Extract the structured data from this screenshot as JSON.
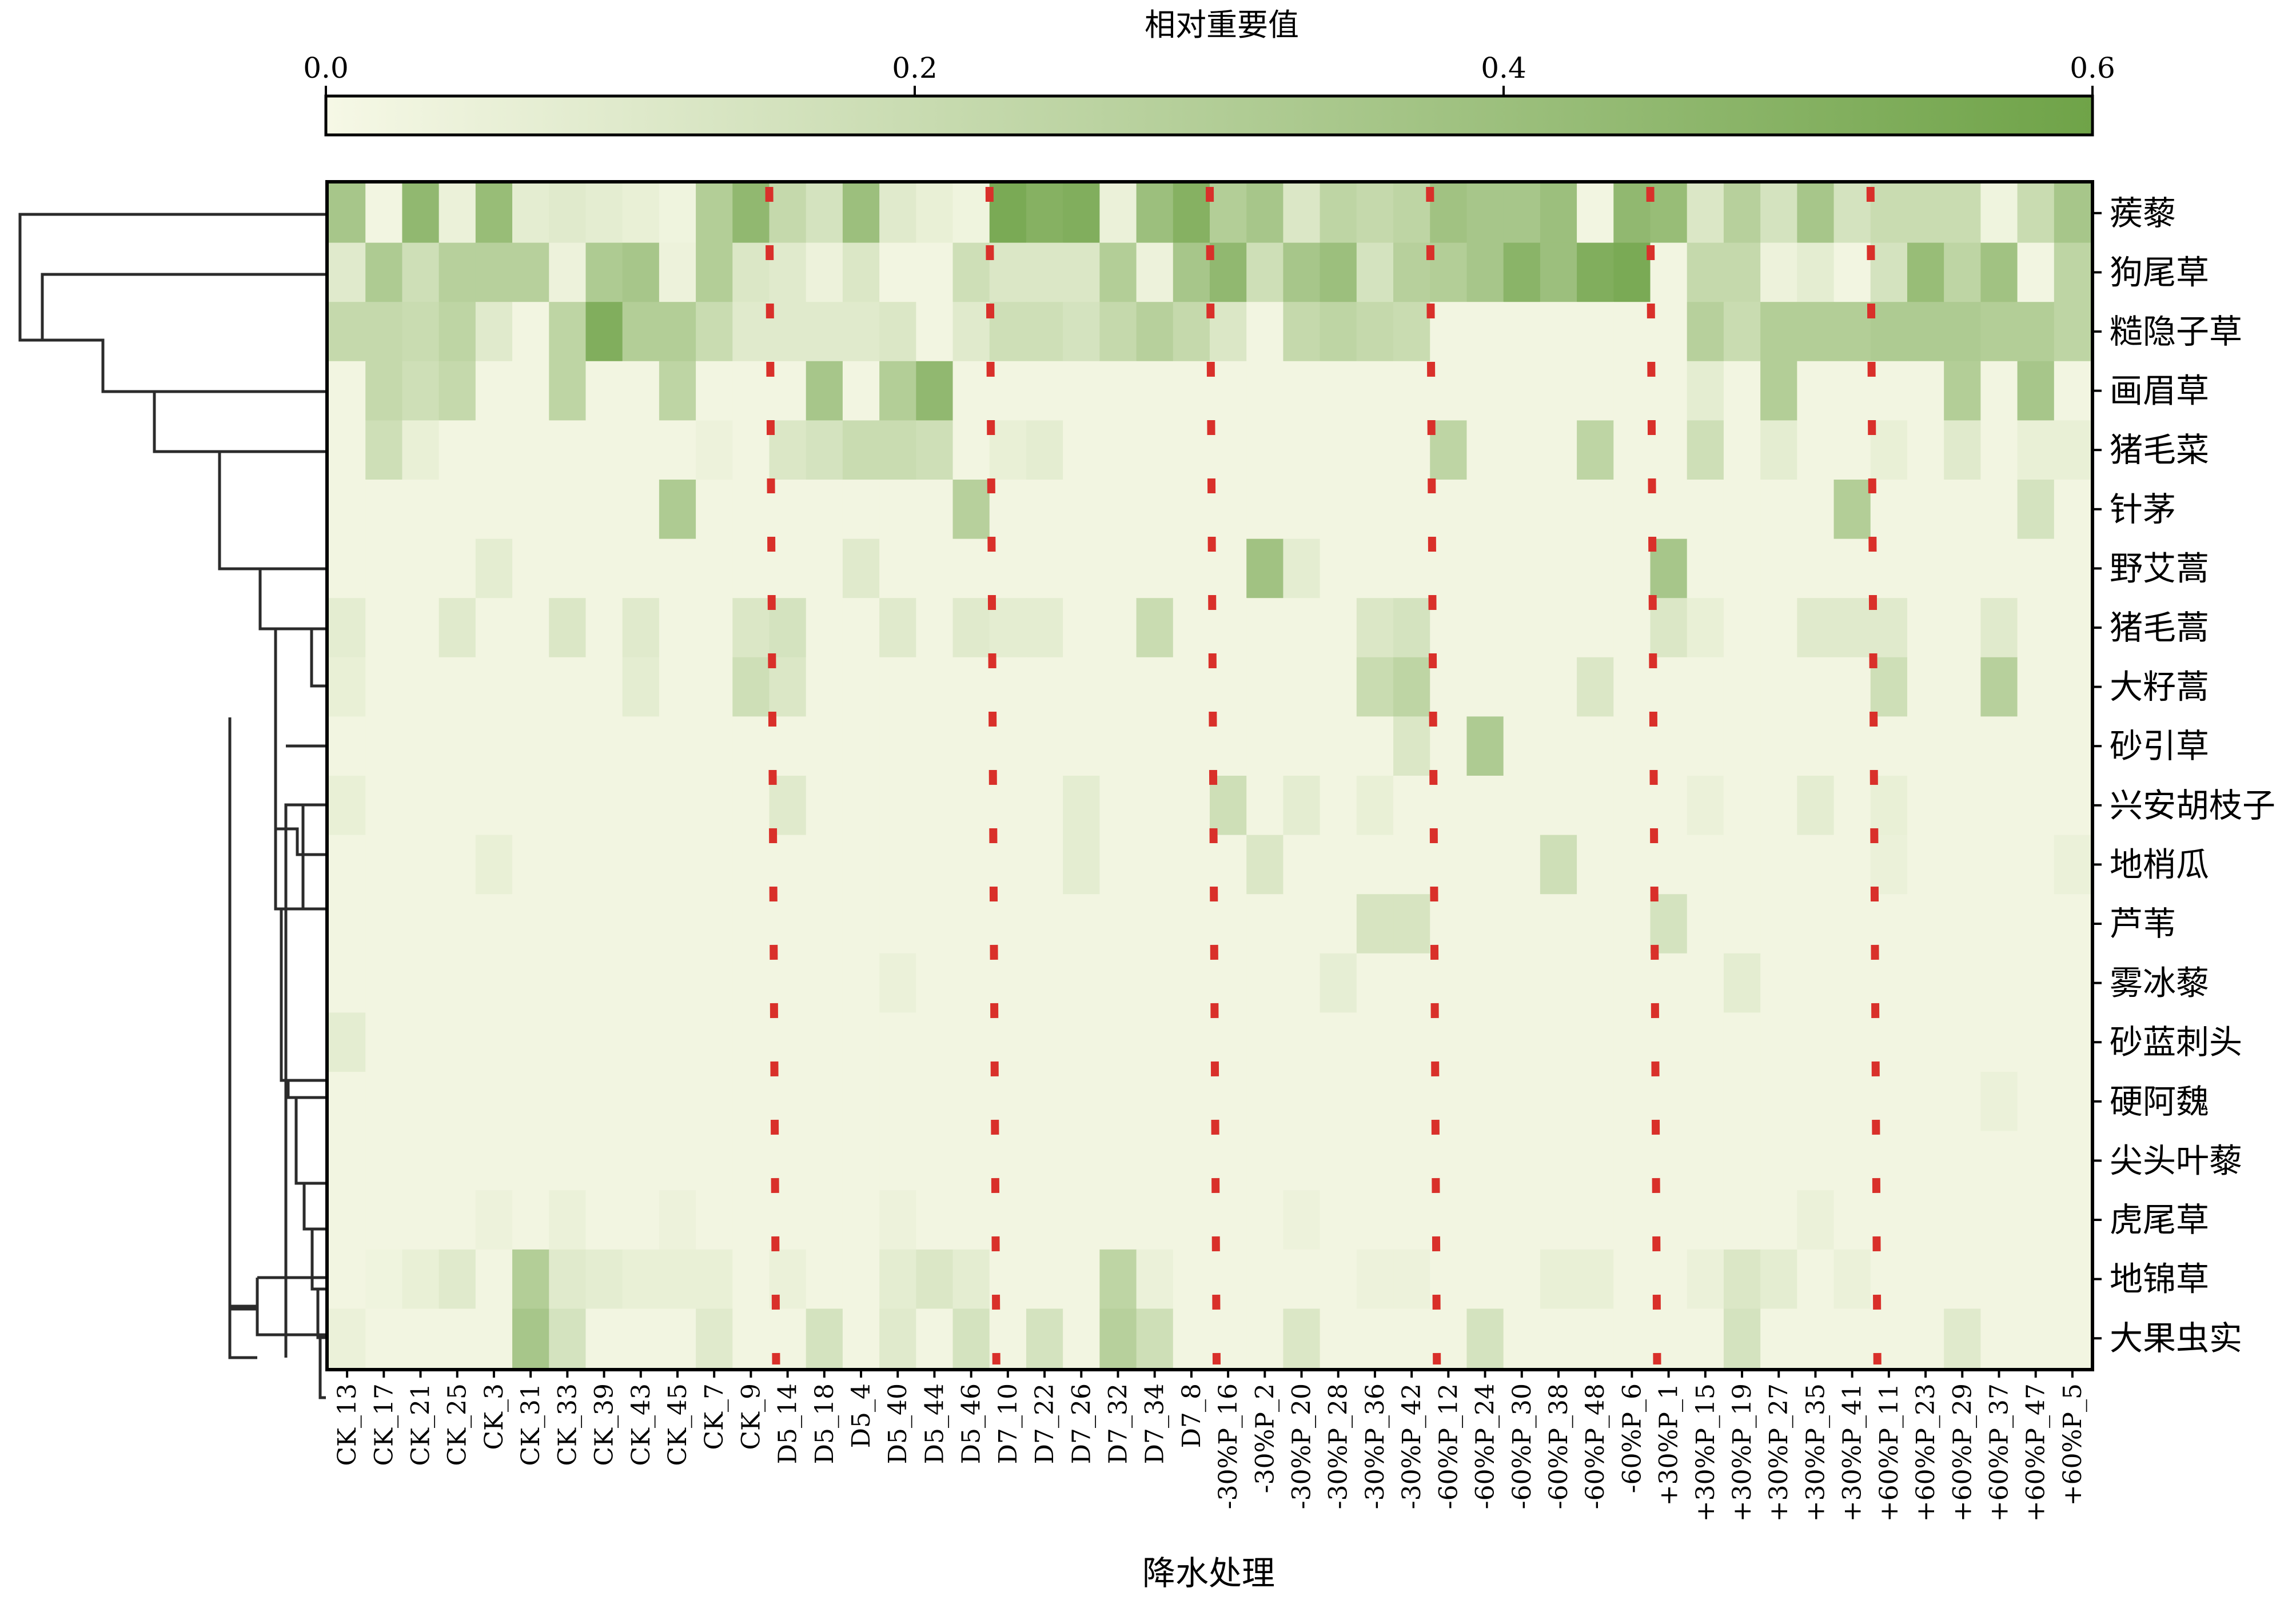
{
  "chart_data": {
    "type": "heatmap",
    "title": "",
    "colorbar": {
      "label": "相对重要值",
      "range": [
        0,
        0.6
      ],
      "ticks": [
        "0.0",
        "0.2",
        "0.4",
        "0.6"
      ],
      "tick_values": [
        0,
        0.2,
        0.4,
        0.6
      ],
      "low_color": "#f6f8e6",
      "high_color": "#6fa348"
    },
    "xlabel": "降水处理",
    "ylabel": "",
    "rows": [
      "蒺藜",
      "狗尾草",
      "糙隐子草",
      "画眉草",
      "猪毛菜",
      "针茅",
      "野艾蒿",
      "猪毛蒿",
      "大籽蒿",
      "砂引草",
      "兴安胡枝子",
      "地梢瓜",
      "芦苇",
      "雾冰藜",
      "砂蓝刺头",
      "硬阿魏",
      "尖头叶藜",
      "虎尾草",
      "地锦草",
      "大果虫实"
    ],
    "columns": [
      "CK_13",
      "CK_17",
      "CK_21",
      "CK_25",
      "CK_3",
      "CK_31",
      "CK_33",
      "CK_39",
      "CK_43",
      "CK_45",
      "CK_7",
      "CK_9",
      "D5_14",
      "D5_18",
      "D5_4",
      "D5_40",
      "D5_44",
      "D5_46",
      "D7_10",
      "D7_22",
      "D7_26",
      "D7_32",
      "D7_34",
      "D7_8",
      "-30%P_16",
      "-30%P_2",
      "-30%P_20",
      "-30%P_28",
      "-30%P_36",
      "-30%P_42",
      "-60%P_12",
      "-60%P_24",
      "-60%P_30",
      "-60%P_38",
      "-60%P_48",
      "-60%P_6",
      "+30%P_1",
      "+30%P_15",
      "+30%P_19",
      "+30%P_27",
      "+30%P_35",
      "+30%P_41",
      "+60%P_11",
      "+60%P_23",
      "+60%P_29",
      "+60%P_37",
      "+60%P_47",
      "+60%P_5"
    ],
    "group_separators_after_column": [
      "CK_9",
      "D5_46",
      "D7_8",
      "-30%P_42",
      "-60%P_6",
      "+30%P_41"
    ],
    "separator_color": "#d9302a",
    "values": [
      [
        0.35,
        0.02,
        0.45,
        0.05,
        0.42,
        0.08,
        0.1,
        0.08,
        0.06,
        0.03,
        0.3,
        0.45,
        0.22,
        0.15,
        0.4,
        0.1,
        0.06,
        0.03,
        0.55,
        0.5,
        0.52,
        0.05,
        0.4,
        0.5,
        0.3,
        0.35,
        0.12,
        0.25,
        0.22,
        0.25,
        0.38,
        0.35,
        0.35,
        0.4,
        0.02,
        0.45,
        0.42,
        0.12,
        0.28,
        0.15,
        0.35,
        0.15,
        0.2,
        0.2,
        0.2,
        0.03,
        0.2,
        0.35
      ],
      [
        0.1,
        0.32,
        0.18,
        0.28,
        0.28,
        0.28,
        0.04,
        0.32,
        0.35,
        0.04,
        0.3,
        0.12,
        0.1,
        0.04,
        0.12,
        0.02,
        0.02,
        0.18,
        0.12,
        0.12,
        0.12,
        0.3,
        0.04,
        0.35,
        0.45,
        0.18,
        0.35,
        0.4,
        0.15,
        0.28,
        0.3,
        0.35,
        0.48,
        0.4,
        0.52,
        0.55,
        0.02,
        0.22,
        0.22,
        0.04,
        0.08,
        0.02,
        0.15,
        0.42,
        0.25,
        0.38,
        0.02,
        0.25
      ],
      [
        0.22,
        0.22,
        0.2,
        0.25,
        0.1,
        0.02,
        0.25,
        0.52,
        0.3,
        0.3,
        0.2,
        0.1,
        0.1,
        0.1,
        0.1,
        0.12,
        0.02,
        0.1,
        0.18,
        0.18,
        0.15,
        0.22,
        0.28,
        0.22,
        0.12,
        0.02,
        0.22,
        0.25,
        0.22,
        0.2,
        0.02,
        0.02,
        0.02,
        0.02,
        0.02,
        0.02,
        0.02,
        0.28,
        0.2,
        0.3,
        0.3,
        0.3,
        0.32,
        0.32,
        0.32,
        0.3,
        0.3,
        0.25
      ],
      [
        0.02,
        0.22,
        0.18,
        0.22,
        0.02,
        0.02,
        0.25,
        0.02,
        0.02,
        0.25,
        0.02,
        0.02,
        0.02,
        0.35,
        0.02,
        0.3,
        0.45,
        0.02,
        0.02,
        0.02,
        0.02,
        0.02,
        0.02,
        0.02,
        0.02,
        0.02,
        0.02,
        0.02,
        0.02,
        0.02,
        0.02,
        0.02,
        0.02,
        0.02,
        0.02,
        0.02,
        0.02,
        0.08,
        0.02,
        0.3,
        0.02,
        0.02,
        0.02,
        0.02,
        0.3,
        0.02,
        0.35,
        0.02
      ],
      [
        0.02,
        0.18,
        0.06,
        0.02,
        0.02,
        0.02,
        0.02,
        0.02,
        0.02,
        0.02,
        0.04,
        0.02,
        0.12,
        0.15,
        0.2,
        0.2,
        0.18,
        0.02,
        0.06,
        0.08,
        0.02,
        0.02,
        0.02,
        0.02,
        0.02,
        0.02,
        0.02,
        0.02,
        0.02,
        0.02,
        0.25,
        0.02,
        0.02,
        0.02,
        0.25,
        0.02,
        0.02,
        0.18,
        0.02,
        0.08,
        0.02,
        0.02,
        0.06,
        0.02,
        0.1,
        0.02,
        0.06,
        0.06
      ],
      [
        0.02,
        0.02,
        0.02,
        0.02,
        0.02,
        0.02,
        0.02,
        0.02,
        0.02,
        0.32,
        0.02,
        0.02,
        0.02,
        0.02,
        0.02,
        0.02,
        0.02,
        0.28,
        0.02,
        0.02,
        0.02,
        0.02,
        0.02,
        0.02,
        0.02,
        0.02,
        0.02,
        0.02,
        0.02,
        0.02,
        0.02,
        0.02,
        0.02,
        0.02,
        0.02,
        0.02,
        0.02,
        0.02,
        0.02,
        0.02,
        0.02,
        0.3,
        0.02,
        0.02,
        0.02,
        0.02,
        0.15,
        0.02
      ],
      [
        0.02,
        0.02,
        0.02,
        0.02,
        0.08,
        0.02,
        0.02,
        0.02,
        0.02,
        0.02,
        0.02,
        0.02,
        0.02,
        0.02,
        0.1,
        0.02,
        0.02,
        0.02,
        0.02,
        0.02,
        0.02,
        0.02,
        0.02,
        0.02,
        0.02,
        0.38,
        0.08,
        0.02,
        0.02,
        0.02,
        0.02,
        0.02,
        0.02,
        0.02,
        0.02,
        0.02,
        0.35,
        0.02,
        0.02,
        0.02,
        0.02,
        0.02,
        0.02,
        0.02,
        0.02,
        0.02,
        0.02,
        0.02
      ],
      [
        0.08,
        0.02,
        0.02,
        0.1,
        0.02,
        0.02,
        0.12,
        0.02,
        0.1,
        0.02,
        0.02,
        0.12,
        0.15,
        0.02,
        0.02,
        0.1,
        0.02,
        0.1,
        0.08,
        0.08,
        0.02,
        0.02,
        0.2,
        0.02,
        0.02,
        0.02,
        0.02,
        0.02,
        0.12,
        0.15,
        0.02,
        0.02,
        0.02,
        0.02,
        0.02,
        0.02,
        0.12,
        0.06,
        0.02,
        0.02,
        0.1,
        0.1,
        0.1,
        0.02,
        0.02,
        0.1,
        0.02,
        0.02
      ],
      [
        0.06,
        0.02,
        0.02,
        0.02,
        0.02,
        0.02,
        0.02,
        0.02,
        0.08,
        0.02,
        0.02,
        0.18,
        0.12,
        0.02,
        0.02,
        0.02,
        0.02,
        0.02,
        0.02,
        0.02,
        0.02,
        0.02,
        0.02,
        0.02,
        0.02,
        0.02,
        0.02,
        0.02,
        0.2,
        0.25,
        0.02,
        0.02,
        0.02,
        0.02,
        0.12,
        0.02,
        0.02,
        0.02,
        0.02,
        0.02,
        0.02,
        0.02,
        0.18,
        0.02,
        0.02,
        0.28,
        0.02,
        0.02
      ],
      [
        0.02,
        0.02,
        0.02,
        0.02,
        0.02,
        0.02,
        0.02,
        0.02,
        0.02,
        0.02,
        0.02,
        0.02,
        0.02,
        0.02,
        0.02,
        0.02,
        0.02,
        0.02,
        0.02,
        0.02,
        0.02,
        0.02,
        0.02,
        0.02,
        0.02,
        0.02,
        0.02,
        0.02,
        0.02,
        0.12,
        0.02,
        0.32,
        0.02,
        0.02,
        0.02,
        0.02,
        0.02,
        0.02,
        0.02,
        0.02,
        0.02,
        0.02,
        0.02,
        0.02,
        0.02,
        0.02,
        0.02,
        0.02
      ],
      [
        0.06,
        0.02,
        0.02,
        0.02,
        0.02,
        0.02,
        0.02,
        0.02,
        0.02,
        0.02,
        0.02,
        0.02,
        0.1,
        0.02,
        0.02,
        0.02,
        0.02,
        0.02,
        0.02,
        0.02,
        0.08,
        0.02,
        0.02,
        0.02,
        0.18,
        0.02,
        0.08,
        0.02,
        0.06,
        0.02,
        0.02,
        0.02,
        0.02,
        0.02,
        0.02,
        0.02,
        0.02,
        0.05,
        0.02,
        0.02,
        0.08,
        0.02,
        0.06,
        0.02,
        0.02,
        0.02,
        0.02,
        0.02
      ],
      [
        0.02,
        0.02,
        0.02,
        0.02,
        0.06,
        0.02,
        0.02,
        0.02,
        0.02,
        0.02,
        0.02,
        0.02,
        0.02,
        0.02,
        0.02,
        0.02,
        0.02,
        0.02,
        0.02,
        0.02,
        0.08,
        0.02,
        0.02,
        0.02,
        0.02,
        0.12,
        0.02,
        0.02,
        0.02,
        0.02,
        0.02,
        0.02,
        0.02,
        0.18,
        0.02,
        0.02,
        0.02,
        0.02,
        0.02,
        0.02,
        0.02,
        0.02,
        0.05,
        0.02,
        0.02,
        0.02,
        0.02,
        0.05
      ],
      [
        0.02,
        0.02,
        0.02,
        0.02,
        0.02,
        0.02,
        0.02,
        0.02,
        0.02,
        0.02,
        0.02,
        0.02,
        0.02,
        0.02,
        0.02,
        0.02,
        0.02,
        0.02,
        0.02,
        0.02,
        0.02,
        0.02,
        0.02,
        0.02,
        0.02,
        0.02,
        0.02,
        0.02,
        0.14,
        0.14,
        0.02,
        0.02,
        0.02,
        0.02,
        0.02,
        0.02,
        0.15,
        0.02,
        0.02,
        0.02,
        0.02,
        0.02,
        0.02,
        0.02,
        0.02,
        0.02,
        0.02,
        0.02
      ],
      [
        0.02,
        0.02,
        0.02,
        0.02,
        0.02,
        0.02,
        0.02,
        0.02,
        0.02,
        0.02,
        0.02,
        0.02,
        0.02,
        0.02,
        0.02,
        0.05,
        0.02,
        0.02,
        0.02,
        0.02,
        0.02,
        0.02,
        0.02,
        0.02,
        0.02,
        0.02,
        0.02,
        0.07,
        0.02,
        0.02,
        0.02,
        0.02,
        0.02,
        0.02,
        0.02,
        0.02,
        0.02,
        0.02,
        0.08,
        0.02,
        0.02,
        0.02,
        0.02,
        0.02,
        0.02,
        0.02,
        0.02,
        0.02
      ],
      [
        0.08,
        0.02,
        0.02,
        0.02,
        0.02,
        0.02,
        0.02,
        0.02,
        0.02,
        0.02,
        0.02,
        0.02,
        0.02,
        0.02,
        0.02,
        0.02,
        0.02,
        0.02,
        0.02,
        0.02,
        0.02,
        0.02,
        0.02,
        0.02,
        0.02,
        0.02,
        0.02,
        0.02,
        0.02,
        0.02,
        0.02,
        0.02,
        0.02,
        0.02,
        0.02,
        0.02,
        0.02,
        0.02,
        0.02,
        0.02,
        0.02,
        0.02,
        0.02,
        0.02,
        0.02,
        0.02,
        0.02,
        0.02
      ],
      [
        0.02,
        0.02,
        0.02,
        0.02,
        0.02,
        0.02,
        0.02,
        0.02,
        0.02,
        0.02,
        0.02,
        0.02,
        0.02,
        0.02,
        0.02,
        0.02,
        0.02,
        0.02,
        0.02,
        0.02,
        0.02,
        0.02,
        0.02,
        0.02,
        0.02,
        0.02,
        0.02,
        0.02,
        0.02,
        0.02,
        0.02,
        0.02,
        0.02,
        0.02,
        0.02,
        0.02,
        0.02,
        0.02,
        0.02,
        0.02,
        0.02,
        0.02,
        0.02,
        0.02,
        0.02,
        0.05,
        0.02,
        0.02
      ],
      [
        0.02,
        0.02,
        0.02,
        0.02,
        0.02,
        0.02,
        0.02,
        0.02,
        0.02,
        0.02,
        0.02,
        0.02,
        0.02,
        0.02,
        0.02,
        0.02,
        0.02,
        0.02,
        0.02,
        0.02,
        0.02,
        0.02,
        0.02,
        0.02,
        0.02,
        0.02,
        0.02,
        0.02,
        0.02,
        0.02,
        0.02,
        0.02,
        0.02,
        0.02,
        0.02,
        0.02,
        0.02,
        0.02,
        0.02,
        0.02,
        0.02,
        0.02,
        0.02,
        0.02,
        0.02,
        0.02,
        0.02,
        0.02
      ],
      [
        0.02,
        0.02,
        0.02,
        0.02,
        0.04,
        0.02,
        0.05,
        0.02,
        0.02,
        0.04,
        0.02,
        0.02,
        0.02,
        0.02,
        0.02,
        0.04,
        0.02,
        0.02,
        0.02,
        0.02,
        0.02,
        0.02,
        0.02,
        0.02,
        0.02,
        0.02,
        0.04,
        0.02,
        0.02,
        0.02,
        0.02,
        0.02,
        0.02,
        0.02,
        0.02,
        0.02,
        0.02,
        0.02,
        0.02,
        0.02,
        0.05,
        0.02,
        0.02,
        0.02,
        0.02,
        0.02,
        0.02,
        0.02
      ],
      [
        0.02,
        0.03,
        0.06,
        0.1,
        0.02,
        0.3,
        0.1,
        0.08,
        0.06,
        0.06,
        0.06,
        0.02,
        0.05,
        0.02,
        0.02,
        0.08,
        0.12,
        0.08,
        0.02,
        0.02,
        0.02,
        0.25,
        0.05,
        0.02,
        0.02,
        0.02,
        0.02,
        0.02,
        0.04,
        0.04,
        0.02,
        0.02,
        0.02,
        0.06,
        0.06,
        0.02,
        0.02,
        0.05,
        0.12,
        0.08,
        0.02,
        0.05,
        0.02,
        0.02,
        0.02,
        0.02,
        0.02,
        0.02
      ],
      [
        0.05,
        0.02,
        0.02,
        0.02,
        0.02,
        0.35,
        0.15,
        0.02,
        0.02,
        0.02,
        0.1,
        0.02,
        0.02,
        0.15,
        0.02,
        0.1,
        0.02,
        0.15,
        0.02,
        0.15,
        0.02,
        0.28,
        0.18,
        0.02,
        0.02,
        0.02,
        0.12,
        0.02,
        0.02,
        0.02,
        0.02,
        0.15,
        0.02,
        0.02,
        0.02,
        0.02,
        0.02,
        0.02,
        0.15,
        0.02,
        0.02,
        0.02,
        0.02,
        0.02,
        0.1,
        0.02,
        0.02,
        0.02
      ]
    ]
  }
}
